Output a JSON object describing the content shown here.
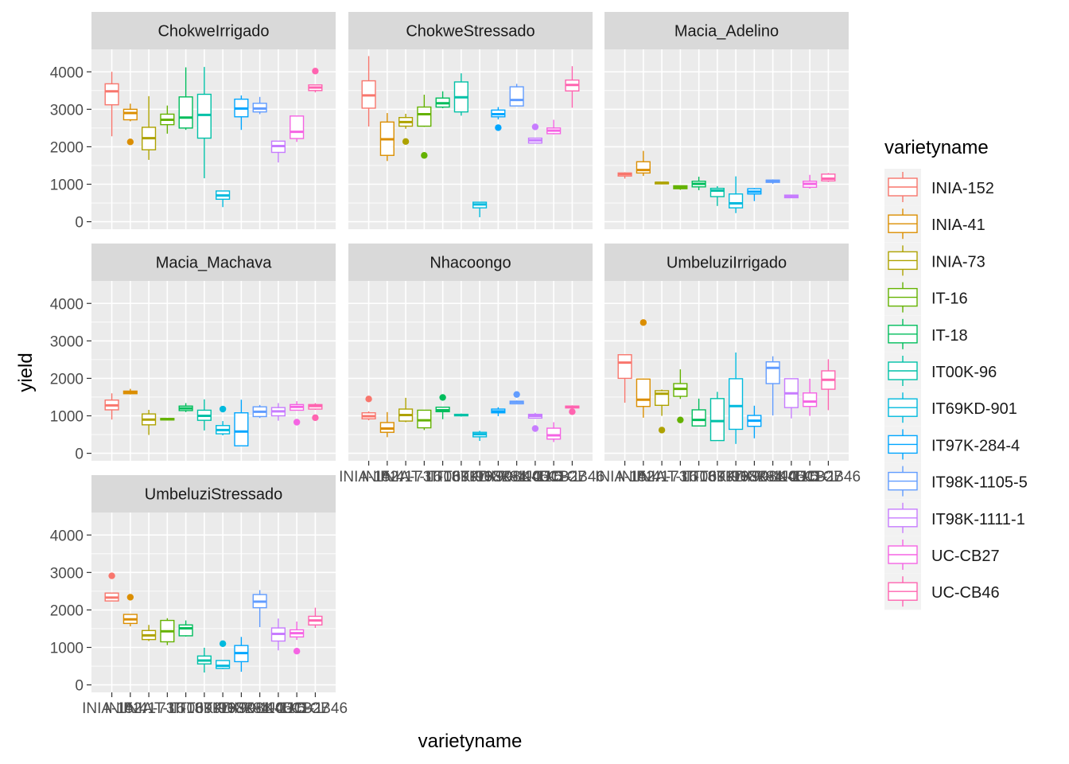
{
  "chart_data": {
    "type": "boxplot",
    "xlabel": "varietyname",
    "ylabel": "yield",
    "ylim": [
      -200,
      4600
    ],
    "y_ticks": [
      0,
      1000,
      2000,
      3000,
      4000
    ],
    "y_tick_labels": [
      "0",
      "1000",
      "2000",
      "3000",
      "4000"
    ],
    "legend": {
      "title": "varietyname",
      "placement": "right",
      "entries": [
        {
          "name": "INIA-152",
          "color": "#F8766D"
        },
        {
          "name": "INIA-41",
          "color": "#DB8E00"
        },
        {
          "name": "INIA-73",
          "color": "#AEA200"
        },
        {
          "name": "IT-16",
          "color": "#64B200"
        },
        {
          "name": "IT-18",
          "color": "#00BD5C"
        },
        {
          "name": "IT00K-96",
          "color": "#00C1A7"
        },
        {
          "name": "IT69KD-901",
          "color": "#00BADE"
        },
        {
          "name": "IT97K-284-4",
          "color": "#00A6FF"
        },
        {
          "name": "IT98K-1105-5",
          "color": "#619CFF"
        },
        {
          "name": "IT98K-1111-1",
          "color": "#C77CFF"
        },
        {
          "name": "UC-CB27",
          "color": "#F564E3"
        },
        {
          "name": "UC-CB46",
          "color": "#FF64B0"
        }
      ]
    },
    "categories": [
      "INIA-152",
      "INIA-41",
      "INIA-73",
      "IT-16",
      "IT-18",
      "IT00K-96",
      "IT69KD-901",
      "IT97K-284-4",
      "IT98K-1105-5",
      "IT98K-1111-1",
      "UC-CB27",
      "UC-CB46"
    ],
    "facets": [
      {
        "name": "ChokweIrrigado",
        "boxes": [
          {
            "min": 2280,
            "q1": 3120,
            "median": 3480,
            "q3": 3680,
            "max": 4000,
            "outliers": []
          },
          {
            "min": 2680,
            "q1": 2720,
            "median": 2900,
            "q3": 3000,
            "max": 3150,
            "outliers": [
              2130
            ]
          },
          {
            "min": 1650,
            "q1": 1920,
            "median": 2230,
            "q3": 2520,
            "max": 3350,
            "outliers": []
          },
          {
            "min": 2350,
            "q1": 2590,
            "median": 2720,
            "q3": 2870,
            "max": 3100,
            "outliers": []
          },
          {
            "min": 2450,
            "q1": 2500,
            "median": 2780,
            "q3": 3330,
            "max": 4120,
            "outliers": []
          },
          {
            "min": 1160,
            "q1": 2230,
            "median": 2850,
            "q3": 3400,
            "max": 4130,
            "outliers": []
          },
          {
            "min": 390,
            "q1": 600,
            "median": 700,
            "q3": 820,
            "max": 820,
            "outliers": []
          },
          {
            "min": 2450,
            "q1": 2800,
            "median": 3020,
            "q3": 3270,
            "max": 3370,
            "outliers": []
          },
          {
            "min": 2870,
            "q1": 2930,
            "median": 3020,
            "q3": 3160,
            "max": 3330,
            "outliers": []
          },
          {
            "min": 1580,
            "q1": 1850,
            "median": 2020,
            "q3": 2150,
            "max": 2150,
            "outliers": []
          },
          {
            "min": 2130,
            "q1": 2220,
            "median": 2400,
            "q3": 2820,
            "max": 2820,
            "outliers": []
          },
          {
            "min": 3450,
            "q1": 3500,
            "median": 3580,
            "q3": 3650,
            "max": 3650,
            "outliers": [
              4020
            ]
          }
        ]
      },
      {
        "name": "ChokweStressado",
        "boxes": [
          {
            "min": 2540,
            "q1": 3030,
            "median": 3370,
            "q3": 3760,
            "max": 4420,
            "outliers": []
          },
          {
            "min": 1620,
            "q1": 1770,
            "median": 2200,
            "q3": 2660,
            "max": 2900,
            "outliers": []
          },
          {
            "min": 2480,
            "q1": 2550,
            "median": 2660,
            "q3": 2780,
            "max": 2880,
            "outliers": [
              2140
            ]
          },
          {
            "min": 2530,
            "q1": 2550,
            "median": 2870,
            "q3": 3060,
            "max": 3390,
            "outliers": [
              1770
            ]
          },
          {
            "min": 3030,
            "q1": 3060,
            "median": 3160,
            "q3": 3300,
            "max": 3480,
            "outliers": []
          },
          {
            "min": 2830,
            "q1": 2930,
            "median": 3320,
            "q3": 3730,
            "max": 3960,
            "outliers": []
          },
          {
            "min": 120,
            "q1": 370,
            "median": 460,
            "q3": 520,
            "max": 520,
            "outliers": []
          },
          {
            "min": 2730,
            "q1": 2800,
            "median": 2870,
            "q3": 2980,
            "max": 3060,
            "outliers": [
              2510
            ]
          },
          {
            "min": 3080,
            "q1": 3090,
            "median": 3250,
            "q3": 3600,
            "max": 3680,
            "outliers": []
          },
          {
            "min": 2100,
            "q1": 2100,
            "median": 2170,
            "q3": 2230,
            "max": 2230,
            "outliers": [
              2530
            ]
          },
          {
            "min": 2330,
            "q1": 2350,
            "median": 2430,
            "q3": 2500,
            "max": 2720,
            "outliers": []
          },
          {
            "min": 3040,
            "q1": 3490,
            "median": 3650,
            "q3": 3780,
            "max": 4150,
            "outliers": []
          }
        ]
      },
      {
        "name": "Macia_Adelino",
        "boxes": [
          {
            "min": 1150,
            "q1": 1220,
            "median": 1270,
            "q3": 1300,
            "max": 1320,
            "outliers": []
          },
          {
            "min": 1220,
            "q1": 1300,
            "median": 1380,
            "q3": 1600,
            "max": 1890,
            "outliers": []
          },
          {
            "min": 1000,
            "q1": 1010,
            "median": 1040,
            "q3": 1050,
            "max": 1050,
            "outliers": []
          },
          {
            "min": 850,
            "q1": 880,
            "median": 920,
            "q3": 960,
            "max": 960,
            "outliers": []
          },
          {
            "min": 840,
            "q1": 930,
            "median": 1010,
            "q3": 1080,
            "max": 1200,
            "outliers": []
          },
          {
            "min": 420,
            "q1": 670,
            "median": 830,
            "q3": 890,
            "max": 950,
            "outliers": []
          },
          {
            "min": 230,
            "q1": 370,
            "median": 490,
            "q3": 740,
            "max": 1210,
            "outliers": []
          },
          {
            "min": 550,
            "q1": 740,
            "median": 800,
            "q3": 880,
            "max": 900,
            "outliers": []
          },
          {
            "min": 1010,
            "q1": 1050,
            "median": 1090,
            "q3": 1110,
            "max": 1130,
            "outliers": []
          },
          {
            "min": 630,
            "q1": 640,
            "median": 680,
            "q3": 710,
            "max": 720,
            "outliers": []
          },
          {
            "min": 880,
            "q1": 920,
            "median": 1010,
            "q3": 1080,
            "max": 1250,
            "outliers": []
          },
          {
            "min": 1060,
            "q1": 1090,
            "median": 1150,
            "q3": 1270,
            "max": 1300,
            "outliers": []
          }
        ]
      },
      {
        "name": "Macia_Machava",
        "boxes": [
          {
            "min": 900,
            "q1": 1160,
            "median": 1280,
            "q3": 1420,
            "max": 1600,
            "outliers": []
          },
          {
            "min": 1570,
            "q1": 1590,
            "median": 1620,
            "q3": 1660,
            "max": 1720,
            "outliers": []
          },
          {
            "min": 490,
            "q1": 760,
            "median": 900,
            "q3": 1050,
            "max": 1160,
            "outliers": []
          },
          {
            "min": 880,
            "q1": 890,
            "median": 910,
            "q3": 930,
            "max": 930,
            "outliers": []
          },
          {
            "min": 1100,
            "q1": 1140,
            "median": 1200,
            "q3": 1260,
            "max": 1340,
            "outliers": []
          },
          {
            "min": 610,
            "q1": 880,
            "median": 1000,
            "q3": 1150,
            "max": 1440,
            "outliers": []
          },
          {
            "min": 480,
            "q1": 520,
            "median": 620,
            "q3": 740,
            "max": 860,
            "outliers": [
              1180
            ]
          },
          {
            "min": 200,
            "q1": 200,
            "median": 580,
            "q3": 1080,
            "max": 1430,
            "outliers": []
          },
          {
            "min": 940,
            "q1": 980,
            "median": 1110,
            "q3": 1240,
            "max": 1290,
            "outliers": []
          },
          {
            "min": 870,
            "q1": 1000,
            "median": 1120,
            "q3": 1220,
            "max": 1340,
            "outliers": []
          },
          {
            "min": 1150,
            "q1": 1150,
            "median": 1240,
            "q3": 1300,
            "max": 1390,
            "outliers": [
              830
            ]
          },
          {
            "min": 1160,
            "q1": 1180,
            "median": 1260,
            "q3": 1300,
            "max": 1340,
            "outliers": [
              950
            ]
          }
        ]
      },
      {
        "name": "Nhacoongo",
        "boxes": [
          {
            "min": 880,
            "q1": 920,
            "median": 990,
            "q3": 1080,
            "max": 1120,
            "outliers": [
              1450
            ]
          },
          {
            "min": 430,
            "q1": 560,
            "median": 660,
            "q3": 820,
            "max": 1100,
            "outliers": []
          },
          {
            "min": 830,
            "q1": 860,
            "median": 1020,
            "q3": 1180,
            "max": 1480,
            "outliers": []
          },
          {
            "min": 620,
            "q1": 680,
            "median": 880,
            "q3": 1150,
            "max": 1150,
            "outliers": []
          },
          {
            "min": 910,
            "q1": 1110,
            "median": 1150,
            "q3": 1230,
            "max": 1230,
            "outliers": [
              1490
            ]
          },
          {
            "min": 980,
            "q1": 1000,
            "median": 1020,
            "q3": 1040,
            "max": 1060,
            "outliers": []
          },
          {
            "min": 330,
            "q1": 440,
            "median": 510,
            "q3": 560,
            "max": 600,
            "outliers": []
          },
          {
            "min": 990,
            "q1": 1080,
            "median": 1120,
            "q3": 1180,
            "max": 1230,
            "outliers": []
          },
          {
            "min": 1310,
            "q1": 1320,
            "median": 1370,
            "q3": 1390,
            "max": 1410,
            "outliers": [
              1570
            ]
          },
          {
            "min": 920,
            "q1": 940,
            "median": 1000,
            "q3": 1040,
            "max": 1080,
            "outliers": [
              660
            ]
          },
          {
            "min": 300,
            "q1": 380,
            "median": 480,
            "q3": 670,
            "max": 830,
            "outliers": []
          },
          {
            "min": 1200,
            "q1": 1210,
            "median": 1240,
            "q3": 1260,
            "max": 1280,
            "outliers": [
              1110
            ]
          }
        ]
      },
      {
        "name": "UmbeluziIrrigado",
        "boxes": [
          {
            "min": 1350,
            "q1": 2000,
            "median": 2420,
            "q3": 2630,
            "max": 2630,
            "outliers": []
          },
          {
            "min": 950,
            "q1": 1250,
            "median": 1430,
            "q3": 1980,
            "max": 1980,
            "outliers": [
              3490
            ]
          },
          {
            "min": 1000,
            "q1": 1280,
            "median": 1590,
            "q3": 1670,
            "max": 1700,
            "outliers": [
              620
            ]
          },
          {
            "min": 1450,
            "q1": 1520,
            "median": 1720,
            "q3": 1860,
            "max": 2240,
            "outliers": [
              890
            ]
          },
          {
            "min": 720,
            "q1": 730,
            "median": 890,
            "q3": 1160,
            "max": 1460,
            "outliers": []
          },
          {
            "min": 340,
            "q1": 340,
            "median": 860,
            "q3": 1460,
            "max": 1640,
            "outliers": []
          },
          {
            "min": 250,
            "q1": 640,
            "median": 1260,
            "q3": 1990,
            "max": 2690,
            "outliers": []
          },
          {
            "min": 400,
            "q1": 720,
            "median": 870,
            "q3": 1010,
            "max": 1270,
            "outliers": []
          },
          {
            "min": 1010,
            "q1": 1860,
            "median": 2280,
            "q3": 2440,
            "max": 2590,
            "outliers": []
          },
          {
            "min": 930,
            "q1": 1220,
            "median": 1600,
            "q3": 1990,
            "max": 1990,
            "outliers": []
          },
          {
            "min": 1000,
            "q1": 1250,
            "median": 1380,
            "q3": 1610,
            "max": 1990,
            "outliers": []
          },
          {
            "min": 1150,
            "q1": 1710,
            "median": 1960,
            "q3": 2200,
            "max": 2510,
            "outliers": []
          }
        ]
      },
      {
        "name": "UmbeluziStressado",
        "boxes": [
          {
            "min": 2230,
            "q1": 2240,
            "median": 2330,
            "q3": 2450,
            "max": 2450,
            "outliers": [
              2910
            ]
          },
          {
            "min": 1560,
            "q1": 1640,
            "median": 1750,
            "q3": 1880,
            "max": 1880,
            "outliers": [
              2340
            ]
          },
          {
            "min": 1170,
            "q1": 1210,
            "median": 1320,
            "q3": 1450,
            "max": 1600,
            "outliers": []
          },
          {
            "min": 1060,
            "q1": 1150,
            "median": 1430,
            "q3": 1720,
            "max": 1780,
            "outliers": []
          },
          {
            "min": 1290,
            "q1": 1310,
            "median": 1510,
            "q3": 1600,
            "max": 1720,
            "outliers": []
          },
          {
            "min": 330,
            "q1": 560,
            "median": 650,
            "q3": 770,
            "max": 990,
            "outliers": []
          },
          {
            "min": 420,
            "q1": 440,
            "median": 510,
            "q3": 650,
            "max": 650,
            "outliers": [
              1100
            ]
          },
          {
            "min": 350,
            "q1": 620,
            "median": 850,
            "q3": 1050,
            "max": 1280,
            "outliers": []
          },
          {
            "min": 1540,
            "q1": 2060,
            "median": 2220,
            "q3": 2410,
            "max": 2530,
            "outliers": []
          },
          {
            "min": 920,
            "q1": 1170,
            "median": 1360,
            "q3": 1520,
            "max": 1770,
            "outliers": []
          },
          {
            "min": 1200,
            "q1": 1280,
            "median": 1380,
            "q3": 1470,
            "max": 1690,
            "outliers": [
              900
            ]
          },
          {
            "min": 1520,
            "q1": 1600,
            "median": 1720,
            "q3": 1830,
            "max": 2060,
            "outliers": []
          }
        ]
      }
    ]
  }
}
